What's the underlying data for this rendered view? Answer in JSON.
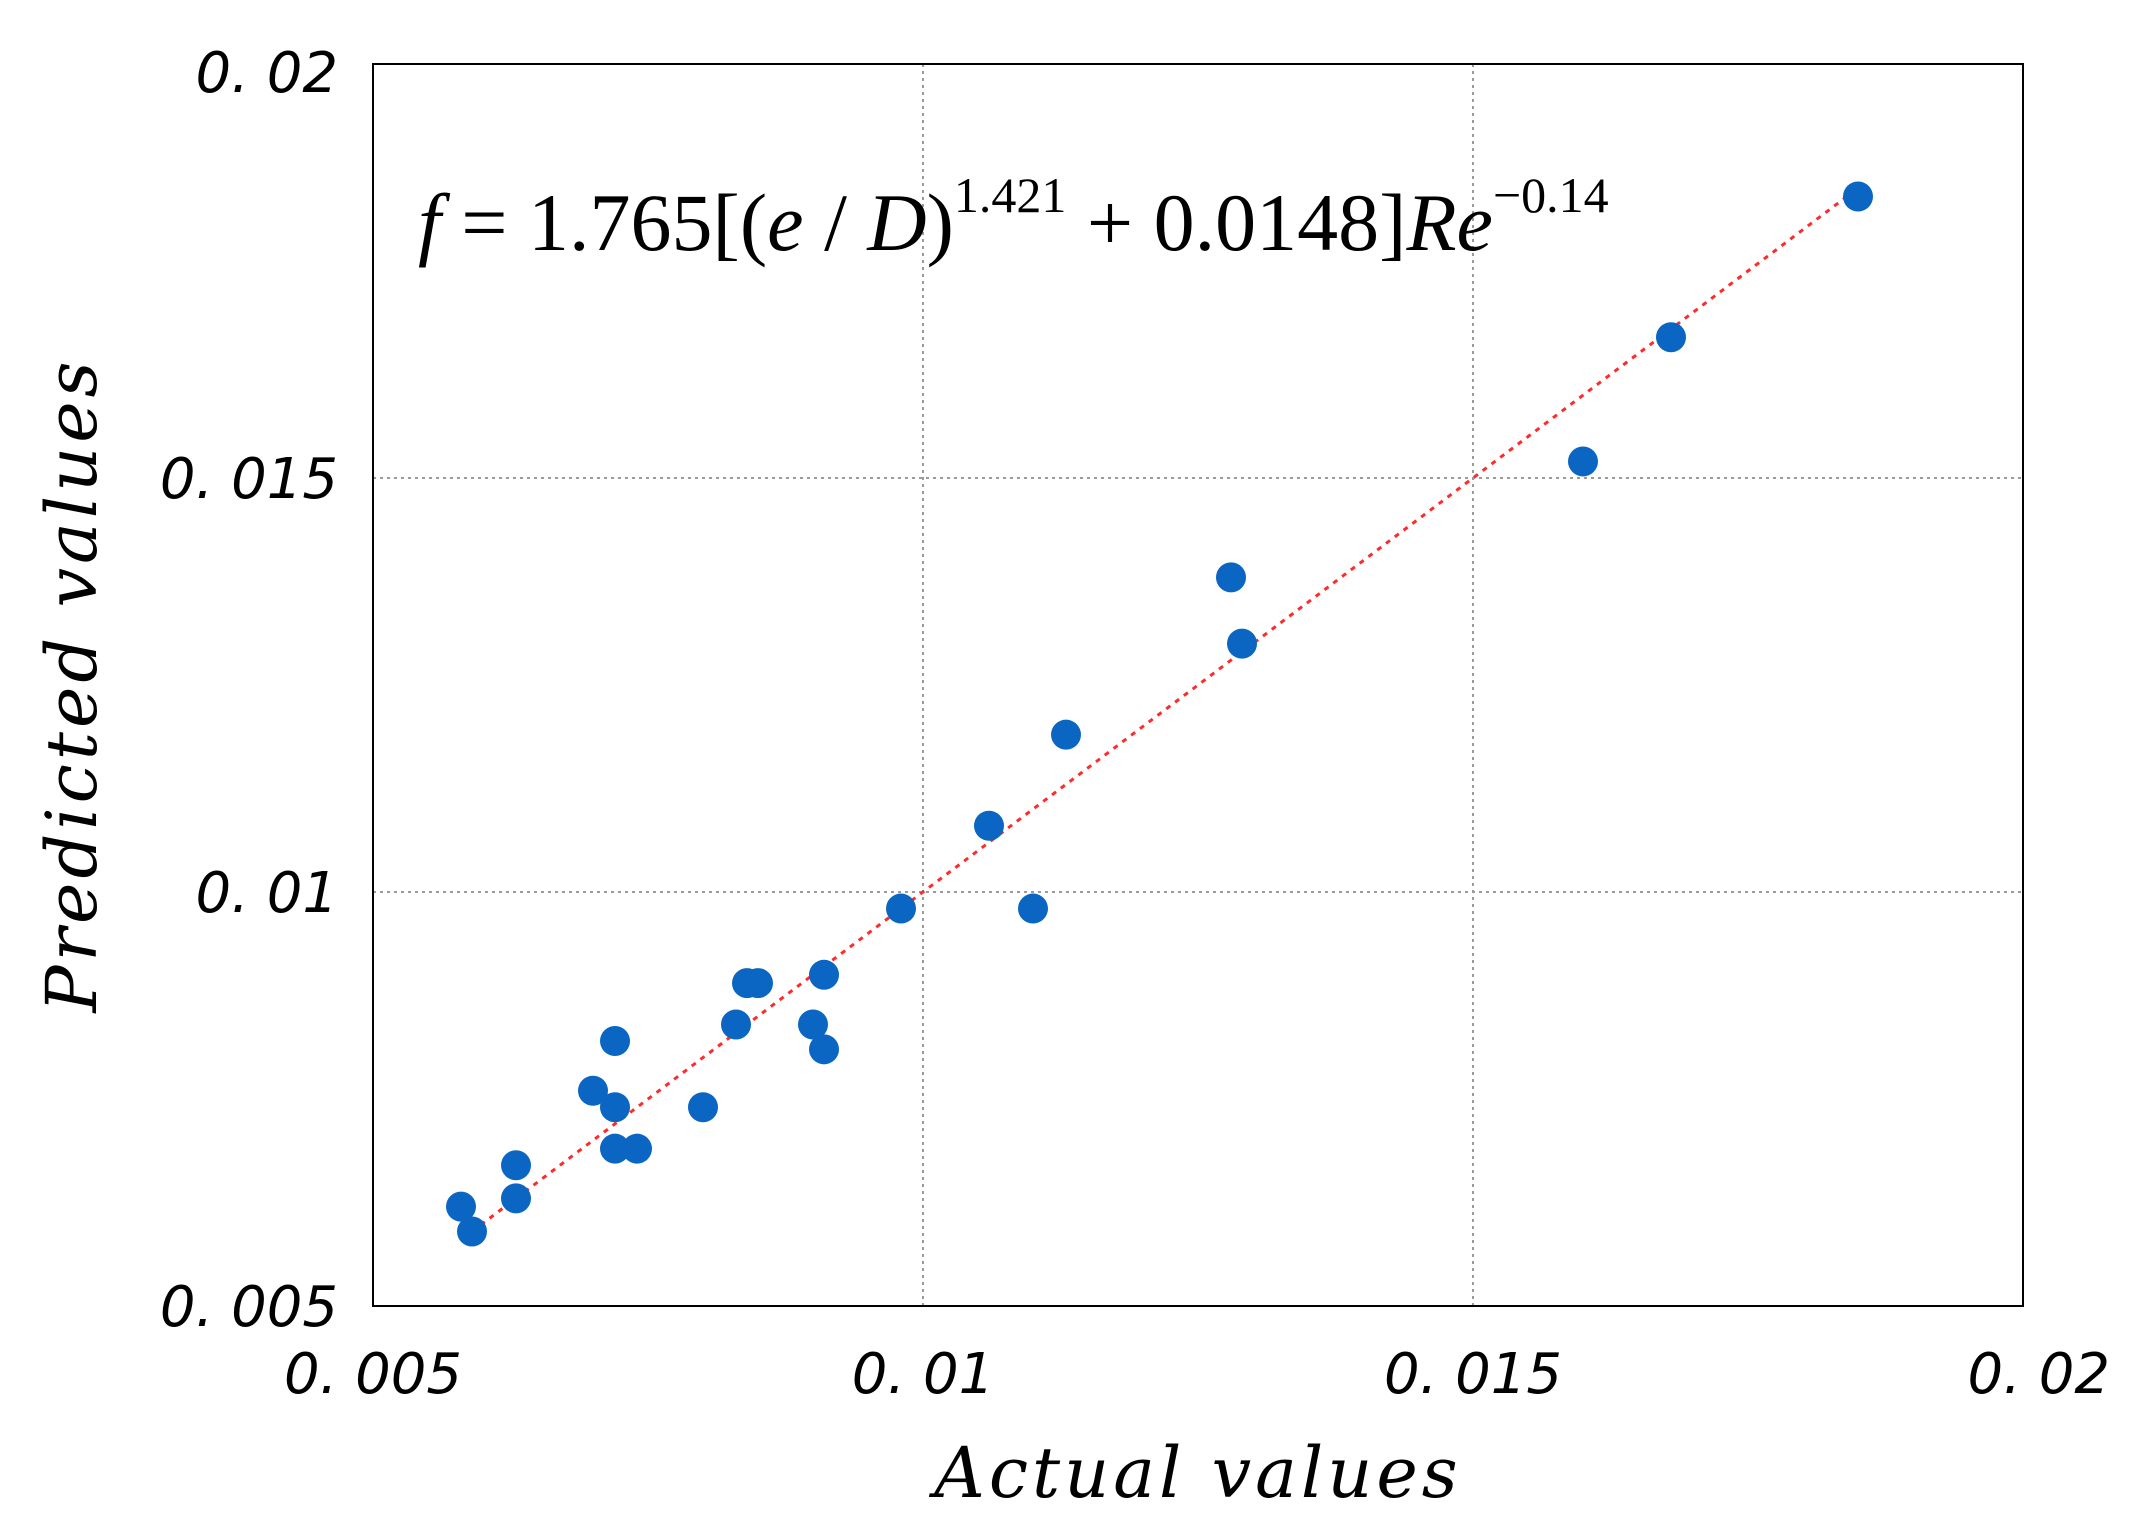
{
  "chart_data": {
    "type": "scatter",
    "title": "",
    "xlabel": "Actual values",
    "ylabel": "Predicted values",
    "xlim": [
      0.005,
      0.02
    ],
    "ylim": [
      0.005,
      0.02
    ],
    "xticks": [
      "0. 005",
      "0. 01",
      "0. 015",
      "0. 02"
    ],
    "yticks": [
      "0. 005",
      "0. 01",
      "0. 015",
      "0. 02"
    ],
    "grid": true,
    "annotation": {
      "f": "f",
      "eq": " = 1.765[(",
      "e": "e",
      "slash": " / ",
      "D": "D",
      "close": ")",
      "exp1": "1.421",
      "mid": " + 0.0148]",
      "Re": "Re",
      "exp2": "−0.14"
    },
    "fit_line": {
      "style": "dotted",
      "color": "#ff2a2a",
      "x": [
        0.0059,
        0.0184
      ],
      "y": [
        0.0059,
        0.0184
      ]
    },
    "marker_color": "#0a66c2",
    "series": [
      {
        "name": "data",
        "points": [
          [
            0.0058,
            0.0062
          ],
          [
            0.0059,
            0.0059
          ],
          [
            0.0063,
            0.0067
          ],
          [
            0.0063,
            0.0063
          ],
          [
            0.007,
            0.0076
          ],
          [
            0.0072,
            0.0082
          ],
          [
            0.0072,
            0.0074
          ],
          [
            0.0072,
            0.0069
          ],
          [
            0.0074,
            0.0069
          ],
          [
            0.008,
            0.0074
          ],
          [
            0.0083,
            0.0084
          ],
          [
            0.0084,
            0.0089
          ],
          [
            0.0085,
            0.0089
          ],
          [
            0.009,
            0.0084
          ],
          [
            0.0091,
            0.0081
          ],
          [
            0.0091,
            0.009
          ],
          [
            0.0098,
            0.0098
          ],
          [
            0.0106,
            0.0108
          ],
          [
            0.011,
            0.0098
          ],
          [
            0.0113,
            0.0119
          ],
          [
            0.0128,
            0.0138
          ],
          [
            0.0129,
            0.013
          ],
          [
            0.016,
            0.0152
          ],
          [
            0.0168,
            0.0167
          ],
          [
            0.0185,
            0.0184
          ]
        ]
      }
    ]
  }
}
